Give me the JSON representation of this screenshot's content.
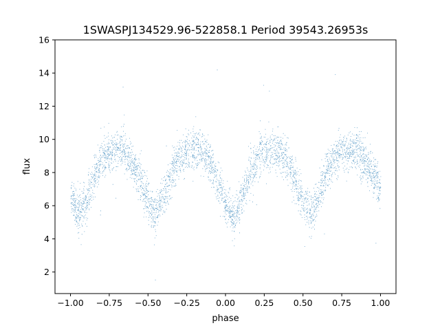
{
  "chart_data": {
    "type": "scatter",
    "title": "1SWASPJ134529.96-522858.1 Period 39543.26953s",
    "xlabel": "phase",
    "ylabel": "flux",
    "xlim": [
      -1.1,
      1.1
    ],
    "ylim": [
      0.7,
      16
    ],
    "xticks": [
      -1.0,
      -0.75,
      -0.5,
      -0.25,
      0.0,
      0.25,
      0.5,
      0.75,
      1.0
    ],
    "xtick_labels": [
      "−1.00",
      "−0.75",
      "−0.50",
      "−0.25",
      "0.00",
      "0.25",
      "0.50",
      "0.75",
      "1.00"
    ],
    "yticks": [
      2,
      4,
      6,
      8,
      10,
      12,
      14,
      16
    ],
    "ytick_labels": [
      "2",
      "4",
      "6",
      "8",
      "10",
      "12",
      "14",
      "16"
    ],
    "grid": false,
    "point_color": "#1f77b4",
    "series": [
      {
        "x": [
          -1.0,
          -0.95,
          -0.9,
          -0.85,
          -0.8,
          -0.75,
          -0.7,
          -0.65,
          -0.6,
          -0.55,
          -0.5,
          -0.45,
          -0.4,
          -0.35,
          -0.3,
          -0.25,
          -0.2,
          -0.15,
          -0.1,
          -0.05,
          0.0,
          0.05,
          0.1,
          0.15,
          0.2,
          0.25,
          0.3,
          0.35,
          0.4,
          0.45,
          0.5,
          0.55,
          0.6,
          0.65,
          0.7,
          0.75,
          0.8,
          0.85,
          0.9,
          0.95,
          1.0
        ],
        "y": [
          6.8,
          5.4,
          6.2,
          7.8,
          8.8,
          9.3,
          9.5,
          9.3,
          8.6,
          7.5,
          6.3,
          5.4,
          6.6,
          8.0,
          8.9,
          9.3,
          9.4,
          9.2,
          8.6,
          7.4,
          6.2,
          5.3,
          6.3,
          7.8,
          8.8,
          9.3,
          9.5,
          9.3,
          8.6,
          7.5,
          6.3,
          5.6,
          6.6,
          8.0,
          8.9,
          9.3,
          9.4,
          9.2,
          8.6,
          7.9,
          7.0
        ],
        "scatter_sigma": 0.6,
        "samples_per_bin": 500
      }
    ]
  }
}
